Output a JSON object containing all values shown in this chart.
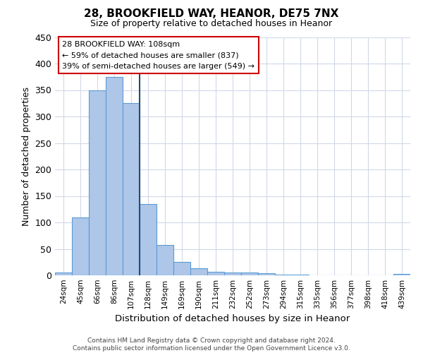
{
  "title": "28, BROOKFIELD WAY, HEANOR, DE75 7NX",
  "subtitle": "Size of property relative to detached houses in Heanor",
  "xlabel": "Distribution of detached houses by size in Heanor",
  "ylabel": "Number of detached properties",
  "categories": [
    "24sqm",
    "45sqm",
    "66sqm",
    "86sqm",
    "107sqm",
    "128sqm",
    "149sqm",
    "169sqm",
    "190sqm",
    "211sqm",
    "232sqm",
    "252sqm",
    "273sqm",
    "294sqm",
    "315sqm",
    "335sqm",
    "356sqm",
    "377sqm",
    "398sqm",
    "418sqm",
    "439sqm"
  ],
  "values": [
    5,
    110,
    350,
    375,
    325,
    135,
    57,
    26,
    13,
    7,
    6,
    6,
    4,
    2,
    1,
    0,
    0,
    0,
    0,
    0,
    3
  ],
  "bar_color": "#aec6e8",
  "bar_edge_color": "#5b9bd5",
  "highlight_index": 4,
  "highlight_line_color": "#1f4e79",
  "ylim": [
    0,
    450
  ],
  "yticks": [
    0,
    50,
    100,
    150,
    200,
    250,
    300,
    350,
    400,
    450
  ],
  "annotation_title": "28 BROOKFIELD WAY: 108sqm",
  "annotation_line1": "← 59% of detached houses are smaller (837)",
  "annotation_line2": "39% of semi-detached houses are larger (549) →",
  "annotation_box_color": "#ffffff",
  "annotation_box_edge_color": "#cc0000",
  "footer_line1": "Contains HM Land Registry data © Crown copyright and database right 2024.",
  "footer_line2": "Contains public sector information licensed under the Open Government Licence v3.0.",
  "background_color": "#ffffff",
  "grid_color": "#d0d8e8"
}
